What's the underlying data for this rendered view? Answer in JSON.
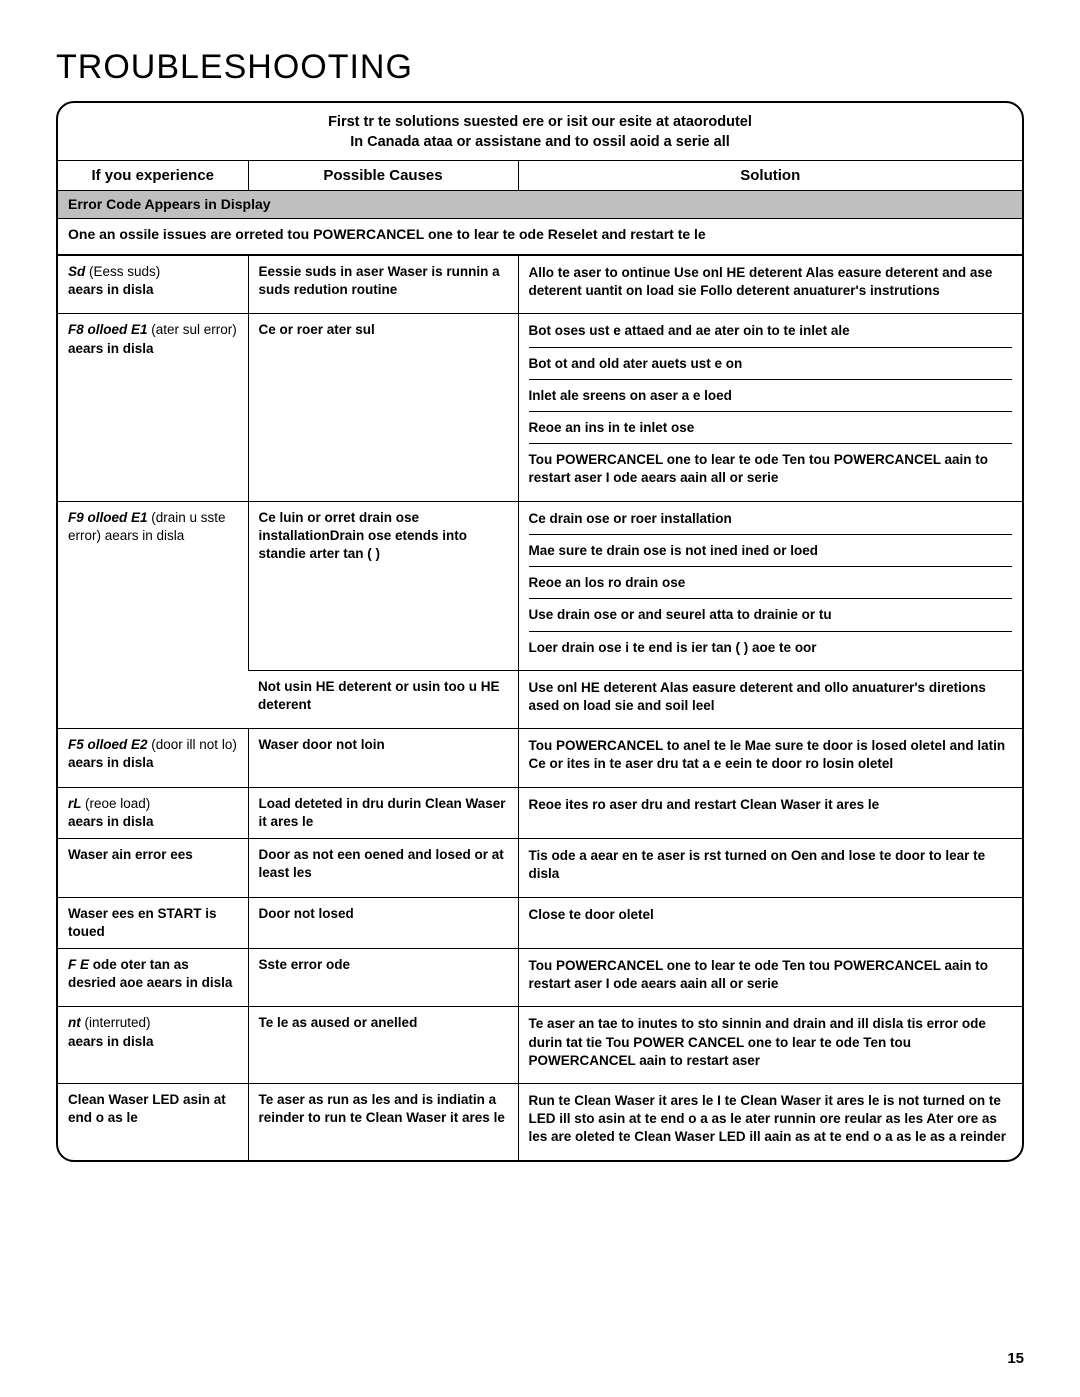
{
  "page": {
    "title": "Troubleshooting",
    "intro_line1": "First tr te solutions suested ere or isit our esite at ataorodutel",
    "intro_line2": "In Canada ataa or assistane and to ossil aoid a serie all",
    "page_number": "15"
  },
  "columns": {
    "experience": "If you experience",
    "causes": "Possible Causes",
    "solution": "Solution"
  },
  "section_header": "Error Code Appears in Display",
  "section_note": "One an ossile issues are orreted tou POWERCANCEL one to lear te ode Reselet and restart te le",
  "rows": [
    {
      "exp_code": "Sd",
      "exp_paren": "(Eess suds)",
      "exp_after": "aears in disla",
      "groups": [
        {
          "cause": "Eessie suds in aser Waser is runnin a suds redution routine",
          "solutions": [
            "Allo te aser to ontinue Use onl HE deterent Alas easure deterent and ase deterent uantit on load sie Follo deterent anuaturer's instrutions"
          ]
        }
      ]
    },
    {
      "exp_code": "F8 olloed   E1",
      "exp_paren": "(ater sul error)",
      "exp_after": "aears in disla",
      "groups": [
        {
          "cause": "Ce or roer ater sul",
          "solutions": [
            "Bot oses ust e attaed and ae ater oin to te inlet ale",
            "Bot ot and old ater auets ust e on",
            "Inlet ale sreens on aser a e loed",
            "Reoe an ins in te inlet ose",
            "Tou POWERCANCEL one to lear te ode Ten tou POWERCANCEL aain to restart aser I ode aears aain all or serie"
          ]
        }
      ]
    },
    {
      "exp_code": "F9 olloed   E1",
      "exp_paren": "(drain u sste error) aears in disla",
      "exp_after": "",
      "groups": [
        {
          "cause": "Ce luin or orret drain ose installationDrain ose etends into standie arter tan     ( )",
          "solutions": [
            "Ce drain ose or roer installation",
            "Mae sure te drain ose is not ined ined or loed",
            "Reoe an los ro drain ose",
            "Use drain ose or and seurel atta to drainie or tu",
            "Loer drain ose i te end is ier tan ( ) aoe te oor"
          ]
        },
        {
          "cause": "Not usin HE deterent or usin too u HE deterent",
          "solutions": [
            "Use onl HE deterent Alas easure deterent and ollo anuaturer's diretions ased on load sie and soil leel"
          ]
        }
      ]
    },
    {
      "exp_code": "F5 olloed   E2",
      "exp_paren": "(door ill not lo)",
      "exp_after": "aears in disla",
      "groups": [
        {
          "cause": "Waser door not loin",
          "solutions": [
            "Tou POWERCANCEL to anel te le Mae sure te door is losed oletel and latin Ce or ites in te aser dru tat a e eein te door ro losin oletel"
          ]
        }
      ]
    },
    {
      "exp_code": "rL",
      "exp_paren": "(reoe load)",
      "exp_after": "aears in disla",
      "groups": [
        {
          "cause": "Load deteted in dru durin Clean Waser it ares     le",
          "solutions": [
            "Reoe ites ro aser dru and restart Clean Waser it ares     le"
          ]
        }
      ]
    },
    {
      "exp_code": "",
      "exp_plain": "Waser ain error ees",
      "groups": [
        {
          "cause": "Door as not een oened and losed or at least  les",
          "solutions": [
            "Tis ode a aear en te aser is rst turned on Oen and lose te door to lear te disla"
          ]
        }
      ]
    },
    {
      "exp_code": "",
      "exp_plain": "Waser ees en START is toued",
      "groups": [
        {
          "cause": "Door not losed",
          "solutions": [
            "Close te door oletel"
          ]
        }
      ]
    },
    {
      "exp_code": "F  E",
      "exp_plain_after_code": "ode oter tan as desried aoe aears in disla",
      "groups": [
        {
          "cause": "Sste error ode",
          "solutions": [
            "Tou   POWERCANCEL  one to lear te ode Ten tou POWERCANCEL  aain to restart aser I ode aears aain all or serie"
          ]
        }
      ]
    },
    {
      "exp_code": "nt",
      "exp_paren": "(interruted)",
      "exp_after": "aears in disla",
      "groups": [
        {
          "cause": "Te le as aused or anelled",
          "solutions": [
            "Te aser an tae  to  inutes to sto sinnin and drain and ill disla tis error ode durin tat tie Tou      POWER CANCEL one to lear te ode Ten tou      POWERCANCEL aain to restart aser"
          ]
        }
      ]
    },
    {
      "exp_code": "",
      "exp_plain": "Clean Waser LED asin at end o as le",
      "groups": [
        {
          "cause": "Te aser as run  as les and is indiatin a reinder to run te Clean Waser it ares     le",
          "solutions": [
            "Run te Clean Waser it ares     le I te Clean Waser it ares     le is not turned on te LED ill sto asin at te end o a as le ater runnin  ore reular as les Ater  ore as les are oleted te Clean Waser LED ill aain as at te end o a as le as a reinder"
          ]
        }
      ]
    }
  ]
}
